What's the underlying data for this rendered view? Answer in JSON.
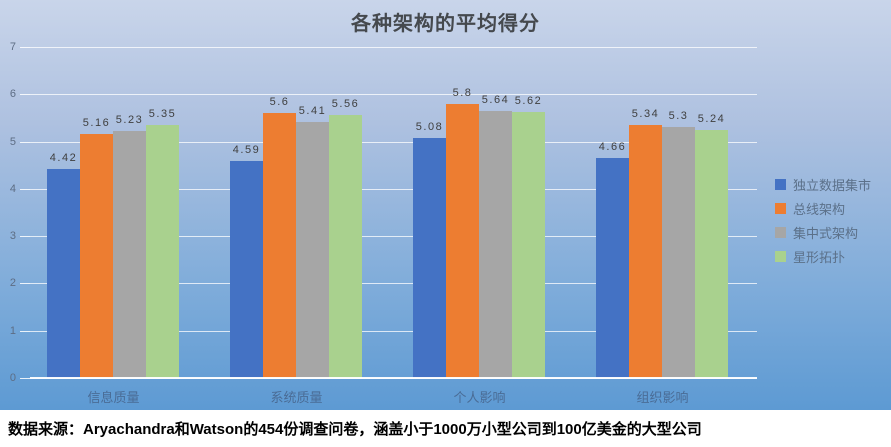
{
  "chart_data": {
    "type": "bar",
    "title": "各种架构的平均得分",
    "categories": [
      "信息质量",
      "系统质量",
      "个人影响",
      "组织影响"
    ],
    "series": [
      {
        "name": "独立数据集市",
        "color": "#4472C4",
        "values": [
          4.42,
          4.59,
          5.08,
          4.66
        ],
        "labels": [
          "4.42",
          "4.59",
          "5.08",
          "4.66"
        ]
      },
      {
        "name": "总线架构",
        "color": "#ED7D31",
        "values": [
          5.16,
          5.6,
          5.8,
          5.34
        ],
        "labels": [
          "5.16",
          "5.6",
          "5.8",
          "5.34"
        ]
      },
      {
        "name": "集中式架构",
        "color": "#A6A6A6",
        "values": [
          5.23,
          5.41,
          5.64,
          5.3
        ],
        "labels": [
          "5.23",
          "5.41",
          "5.64",
          "5.3"
        ]
      },
      {
        "name": "星形拓扑",
        "color": "#A9D18E",
        "values": [
          5.35,
          5.56,
          5.62,
          5.24
        ],
        "labels": [
          "5.35",
          "5.56",
          "5.62",
          "5.24"
        ]
      }
    ],
    "ylim": [
      0,
      7
    ],
    "y_ticks": [
      "0",
      "1",
      "2",
      "3",
      "4",
      "5",
      "6",
      "7"
    ],
    "grid": true,
    "legend_position": "right",
    "xlabel": "",
    "ylabel": ""
  },
  "source_note": "数据来源：Aryachandra和Watson的454份调查问卷，涵盖小于1000万小型公司到100亿美金的大型公司",
  "colors": {
    "background_top": "#C9D5EA",
    "background_bottom": "#5D9AD3",
    "gridline": "#FFFFFF",
    "title_text": "#45494E",
    "tick_text": "#5D6D84",
    "category_text": "#4A6C96",
    "legend_text": "#5B7089",
    "data_label_text": "#3F3F3F",
    "source_background": "#FFFFFF",
    "source_text": "#000000"
  }
}
